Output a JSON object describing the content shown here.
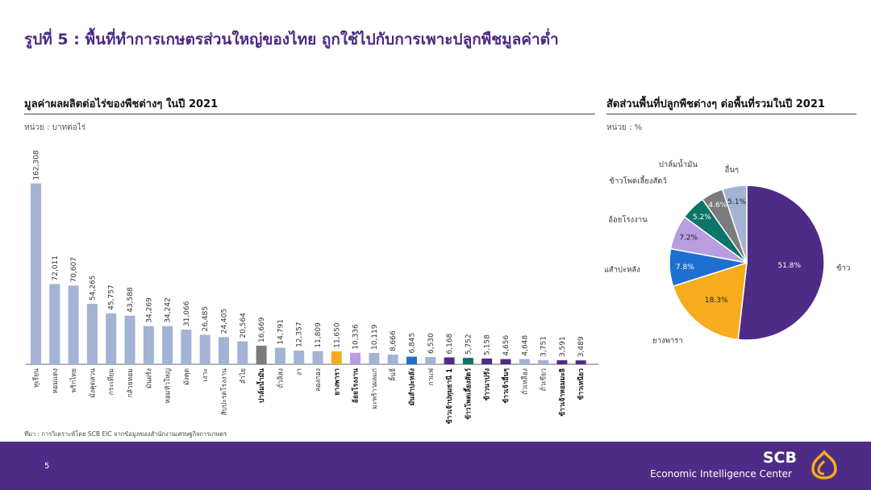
{
  "page": {
    "title": "รูปที่ 5 : พื้นที่ทำการเกษตรส่วนใหญ่ของไทย ถูกใช้ไปกับการเพาะปลูกพืชมูลค่าต่ำ",
    "source": "ที่มา : การวิเคราะห์โดย SCB EIC จากข้อมูลของสำนักงานเศรษฐกิจการเกษตร",
    "page_number": "5",
    "brand": "SCB",
    "brand_sub": "Economic Intelligence Center",
    "colors": {
      "accent": "#4e2b86",
      "title": "#4b2a83"
    }
  },
  "bar_panel": {
    "title": "มูลค่าผลผลิตต่อไร่ของพืชต่างๆ ในปี 2021",
    "unit": "หน่วย : บาทต่อไร่"
  },
  "pie_panel": {
    "title": "สัดส่วนพื้นที่ปลูกพืชต่างๆ ต่อพื้นที่รวมในปี 2021",
    "unit": "หน่วย : %"
  },
  "chart_data": [
    {
      "type": "bar",
      "title": "มูลค่าผลผลิตต่อไร่ของพืชต่างๆ ในปี 2021",
      "ylabel": "หน่วย : บาทต่อไร่",
      "ylim": [
        0,
        170000
      ],
      "grid": false,
      "categories": [
        "ทุเรียน",
        "หอมแดง",
        "พริกไทย",
        "มังคุดสวน",
        "กระเทียม",
        "กล้วยหอม",
        "มันฝรั่ง",
        "หอมหัวใหญ่",
        "มังคุด",
        "เงาะ",
        "สับปะรดโรงงาน",
        "ลำไย",
        "ปาล์มน้ำมัน",
        "ถั่วลิสง",
        "งา",
        "ลองกอง",
        "ยางพารา",
        "อ้อยโรงงาน",
        "มะพร้าวผลแก่",
        "ลิ้นจี่",
        "มันสำปะหลัง",
        "กาแฟ",
        "ข้าวเจ้าปทุมธานี 1",
        "ข้าวโพดเลี้ยงสัตว์",
        "ข้าวนาปรัง",
        "ข้าวเจ้าอื่นๆ",
        "ถั่วเหลือง",
        "ถั่วเขียว",
        "ข้าวเจ้าหอมมะลิ",
        "ข้าวเหนียว"
      ],
      "values": [
        162308,
        72011,
        70607,
        54265,
        45757,
        43588,
        34269,
        34242,
        31066,
        26485,
        24405,
        20564,
        16669,
        14791,
        12357,
        11809,
        11650,
        10336,
        10119,
        8666,
        6845,
        6530,
        6168,
        5752,
        5158,
        4656,
        4648,
        3751,
        3591,
        3489
      ],
      "value_labels": [
        "162,308",
        "72,011",
        "70,607",
        "54,265",
        "45,757",
        "43,588",
        "34,269",
        "34,242",
        "31,066",
        "26,485",
        "24,405",
        "20,564",
        "16,669",
        "14,791",
        "12,357",
        "11,809",
        "11,650",
        "10,336",
        "10,119",
        "8,666",
        "6,845",
        "6,530",
        "6,168",
        "5,752",
        "5,158",
        "4,656",
        "4,648",
        "3,751",
        "3,591",
        "3,489"
      ],
      "highlighted": [
        "ปาล์มน้ำมัน",
        "ยางพารา",
        "อ้อยโรงงาน",
        "มันสำปะหลัง",
        "ข้าวเจ้าปทุมธานี 1",
        "ข้าวโพดเลี้ยงสัตว์",
        "ข้าวนาปรัง",
        "ข้าวเจ้าอื่นๆ",
        "ข้าวเจ้าหอมมะลิ",
        "ข้าวเหนียว"
      ],
      "colors": [
        "#a3b3d3",
        "#a3b3d3",
        "#a3b3d3",
        "#a3b3d3",
        "#a3b3d3",
        "#a3b3d3",
        "#a3b3d3",
        "#a3b3d3",
        "#a3b3d3",
        "#a3b3d3",
        "#a3b3d3",
        "#a3b3d3",
        "#7b7b7b",
        "#a3b3d3",
        "#a3b3d3",
        "#a3b3d3",
        "#f6ac1c",
        "#b89de0",
        "#a3b3d3",
        "#a3b3d3",
        "#1f6fd1",
        "#a3b3d3",
        "#4e2b86",
        "#0c7468",
        "#4e2b86",
        "#4e2b86",
        "#a3b3d3",
        "#a3b3d3",
        "#4e2b86",
        "#4e2b86"
      ]
    },
    {
      "type": "pie",
      "title": "สัดส่วนพื้นที่ปลูกพืชต่างๆ ต่อพื้นที่รวมในปี 2021",
      "unit": "หน่วย : %",
      "labels": [
        "ข้าว",
        "ยางพารา",
        "มันสำปะหลัง",
        "อ้อยโรงงาน",
        "ข้าวโพดเลี้ยงสัตว์",
        "ปาล์มน้ำมัน",
        "อื่นๆ"
      ],
      "values": [
        51.8,
        18.3,
        7.8,
        7.2,
        5.2,
        4.6,
        5.1
      ],
      "value_labels": [
        "51.8%",
        "18.3%",
        "7.8%",
        "7.2%",
        "5.2%",
        "4.6%",
        "5.1%"
      ],
      "colors": [
        "#4e2b86",
        "#f6ac1c",
        "#1f6fd1",
        "#b89de0",
        "#0c7468",
        "#7b7b7b",
        "#a3b3d3"
      ]
    }
  ]
}
